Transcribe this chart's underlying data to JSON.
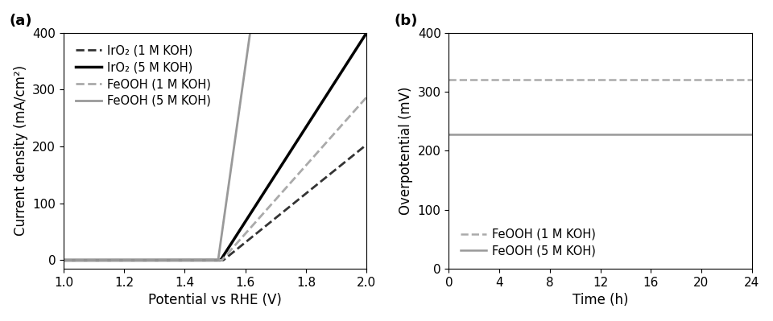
{
  "panel_a": {
    "xlabel": "Potential vs RHE (V)",
    "ylabel": "Current density (mA/cm²)",
    "xlim": [
      1.0,
      2.0
    ],
    "ylim": [
      -15,
      400
    ],
    "yticks": [
      0,
      100,
      200,
      300,
      400
    ],
    "xticks": [
      1.0,
      1.2,
      1.4,
      1.6,
      1.8,
      2.0
    ],
    "curves": [
      {
        "label": "IrO₂ (1 M KOH)",
        "color": "#333333",
        "linestyle": "dashed",
        "linewidth": 2.0,
        "onset": 1.527,
        "k": 430
      },
      {
        "label": "IrO₂ (5 M KOH)",
        "color": "#000000",
        "linestyle": "solid",
        "linewidth": 2.5,
        "onset": 1.518,
        "k": 830
      },
      {
        "label": "FeOOH (1 M KOH)",
        "color": "#aaaaaa",
        "linestyle": "dashed",
        "linewidth": 2.0,
        "onset": 1.522,
        "k": 600
      },
      {
        "label": "FeOOH (5 M KOH)",
        "color": "#999999",
        "linestyle": "solid",
        "linewidth": 2.0,
        "onset": 1.51,
        "k": 3800
      }
    ]
  },
  "panel_b": {
    "xlabel": "Time (h)",
    "ylabel": "Overpotential (mV)",
    "xlim": [
      0,
      24
    ],
    "ylim": [
      0,
      400
    ],
    "yticks": [
      0,
      100,
      200,
      300,
      400
    ],
    "xticks": [
      0,
      4,
      8,
      12,
      16,
      20,
      24
    ],
    "curves": [
      {
        "label": "FeOOH (1 M KOH)",
        "color": "#aaaaaa",
        "linestyle": "dashed",
        "linewidth": 1.8,
        "value": 320
      },
      {
        "label": "FeOOH (5 M KOH)",
        "color": "#999999",
        "linestyle": "solid",
        "linewidth": 1.8,
        "value": 228
      }
    ]
  },
  "label_a": "(a)",
  "label_b": "(b)",
  "background_color": "#ffffff",
  "font_size_labels": 12,
  "font_size_ticks": 11,
  "font_size_legend": 10.5,
  "font_size_panel_label": 13
}
